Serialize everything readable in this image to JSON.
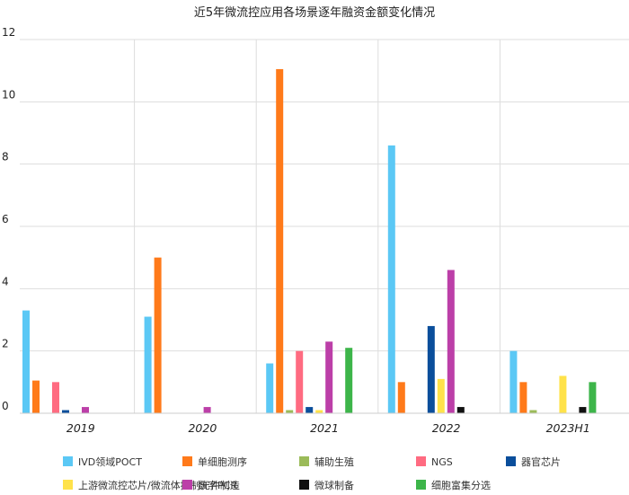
{
  "chart_data": {
    "type": "bar",
    "title": "近5年微流控应用各场景逐年融资金额变化情况",
    "categories": [
      "2019",
      "2020",
      "2021",
      "2022",
      "2023H1"
    ],
    "ylim": [
      0,
      12
    ],
    "yticks": [
      0,
      2,
      4,
      6,
      8,
      10,
      12
    ],
    "grid": true,
    "legend_position": "bottom",
    "series": [
      {
        "name": "IVD领域POCT",
        "color": "#5BC8F5",
        "values": [
          3.3,
          3.1,
          1.6,
          8.6,
          2.0
        ]
      },
      {
        "name": "单细胞测序",
        "color": "#FF7A1A",
        "values": [
          1.05,
          5.0,
          11.05,
          1.0,
          1.0
        ]
      },
      {
        "name": "辅助生殖",
        "color": "#9BBB59",
        "values": [
          0,
          0,
          0.1,
          0,
          0.1
        ]
      },
      {
        "name": "NGS",
        "color": "#FF6B81",
        "values": [
          1.0,
          0,
          2.0,
          0,
          0
        ]
      },
      {
        "name": "器官芯片",
        "color": "#0A4E9B",
        "values": [
          0.1,
          0,
          0.2,
          2.8,
          0
        ]
      },
      {
        "name": "上游微流控芯片/微流体控制元件制造",
        "color": "#FFE24A",
        "values": [
          0,
          0,
          0.1,
          1.1,
          1.2
        ]
      },
      {
        "name": "数字PCR",
        "color": "#BC3FA8",
        "values": [
          0.2,
          0.2,
          2.3,
          4.6,
          0
        ]
      },
      {
        "name": "微球制备",
        "color": "#111111",
        "values": [
          0,
          0,
          0,
          0.2,
          0.2
        ]
      },
      {
        "name": "细胞富集分选",
        "color": "#3DB54A",
        "values": [
          0,
          0,
          2.1,
          0,
          1.0
        ]
      }
    ]
  }
}
